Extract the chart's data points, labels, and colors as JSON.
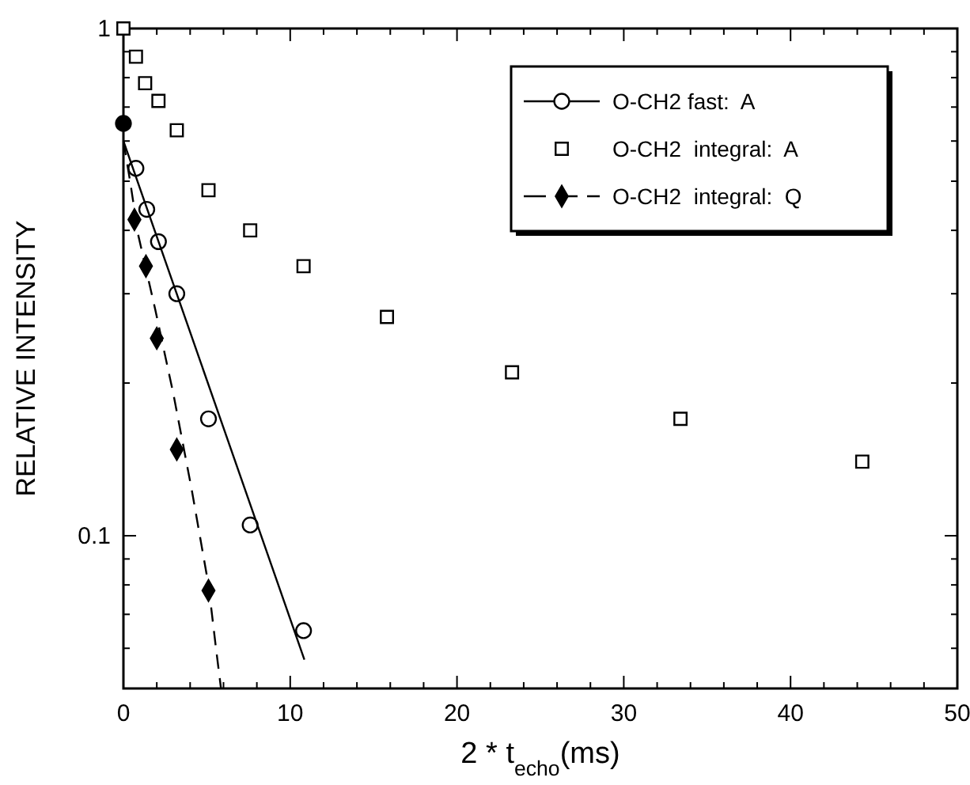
{
  "chart_data": {
    "type": "scatter",
    "xlabel": "2 * t$_{echo}$(ms)",
    "ylabel": "RELATIVE INTENSITY",
    "log": "y",
    "xlim": [
      0,
      50
    ],
    "ylim": [
      0.05,
      1
    ],
    "xticks": [
      0,
      {
        "value": 2,
        "label": null
      },
      {
        "value": 4,
        "label": null
      },
      {
        "value": 6,
        "label": null
      },
      {
        "value": 8,
        "label": null
      },
      10,
      {
        "value": 12,
        "label": null
      },
      {
        "value": 14,
        "label": null
      },
      {
        "value": 16,
        "label": null
      },
      {
        "value": 18,
        "label": null
      },
      20,
      {
        "value": 22,
        "label": null
      },
      {
        "value": 24,
        "label": null
      },
      {
        "value": 26,
        "label": null
      },
      {
        "value": 28,
        "label": null
      },
      30,
      {
        "value": 32,
        "label": null
      },
      {
        "value": 34,
        "label": null
      },
      {
        "value": 36,
        "label": null
      },
      {
        "value": 38,
        "label": null
      },
      40,
      {
        "value": 42,
        "label": null
      },
      {
        "value": 44,
        "label": null
      },
      {
        "value": 46,
        "label": null
      },
      {
        "value": 48,
        "label": null
      },
      50
    ],
    "yticks": [
      {
        "value": 0.05,
        "label": null
      },
      {
        "value": 0.06,
        "label": null
      },
      {
        "value": 0.07,
        "label": null
      },
      {
        "value": 0.08,
        "label": null
      },
      {
        "value": 0.09,
        "label": null
      },
      0.1,
      {
        "value": 0.2,
        "label": null
      },
      {
        "value": 0.3,
        "label": null
      },
      {
        "value": 0.4,
        "label": null
      },
      {
        "value": 0.5,
        "label": null
      },
      {
        "value": 0.6,
        "label": null
      },
      {
        "value": 0.7,
        "label": null
      },
      {
        "value": 0.8,
        "label": null
      },
      {
        "value": 0.9,
        "label": null
      },
      1
    ],
    "grid": false,
    "legend": "top right",
    "series": [
      {
        "name": "O-CH2 fast:  A",
        "marker": "circle",
        "color": "#000000",
        "x": [
          0.75,
          1.4,
          2.1,
          3.2,
          5.1,
          7.6,
          10.8
        ],
        "values": [
          0.53,
          0.44,
          0.38,
          0.3,
          0.17,
          0.105,
          0.065
        ]
      },
      {
        "type": "line",
        "marker": "none",
        "line_style": "solid",
        "color": "#000000",
        "x": [
          0,
          10.85
        ],
        "values": [
          0.6,
          0.057
        ]
      },
      {
        "name": "O-CH2  integral:  A",
        "marker": "square",
        "color": "#000000",
        "x": [
          0,
          0.75,
          1.3,
          2.1,
          3.2,
          5.1,
          7.6,
          10.8,
          15.8,
          23.3,
          33.4,
          44.3
        ],
        "values": [
          1.0,
          0.88,
          0.78,
          0.72,
          0.63,
          0.48,
          0.4,
          0.34,
          0.27,
          0.21,
          0.17,
          0.14
        ]
      },
      {
        "name": "O-CH2  integral:  Q",
        "marker": "diamond",
        "color": "#000000",
        "x": [
          0.66,
          1.35,
          2.0,
          3.2,
          5.1
        ],
        "values": [
          0.42,
          0.34,
          0.245,
          0.148,
          0.078
        ]
      },
      {
        "type": "line",
        "marker": "none",
        "line_style": "dashed",
        "color": "#000000",
        "x": [
          0,
          0.4,
          0.9,
          1.9,
          3.0,
          4.1,
          5.1,
          5.55,
          5.85
        ],
        "values": [
          0.6,
          0.5,
          0.39,
          0.28,
          0.19,
          0.123,
          0.08,
          0.06,
          0.05
        ]
      },
      {
        "marker": "circle",
        "color": "#000000",
        "x": [
          0
        ],
        "values": [
          0.65
        ]
      }
    ]
  }
}
